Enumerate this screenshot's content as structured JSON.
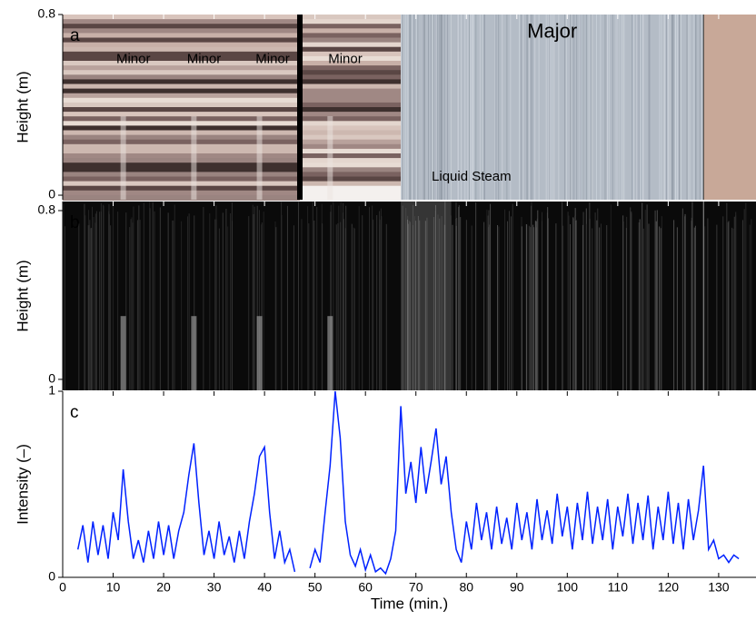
{
  "chart_data": [
    {
      "type": "image",
      "panel_label": "a",
      "ylabel": "Height (m)",
      "xlim": [
        0,
        137.4
      ],
      "ylim": [
        -0.02,
        0.8
      ],
      "yticks": [
        0,
        0.8
      ],
      "annotations": [
        {
          "text": "Minor",
          "color": "#ff88dd"
        },
        {
          "text": "Minor",
          "color": "#ff88dd"
        },
        {
          "text": "Minor",
          "color": "#ff88dd"
        },
        {
          "text": "Minor",
          "color": "#ff88dd"
        },
        {
          "text": "Major",
          "color": "#e00000"
        },
        {
          "text": "Liquid Steam",
          "color": "#000000"
        }
      ]
    },
    {
      "type": "image",
      "panel_label": "b",
      "ylabel": "Height (m)",
      "xlim": [
        0,
        137.4
      ],
      "ylim": [
        -0.052,
        0.843
      ],
      "yticks": [
        0,
        0.8
      ]
    },
    {
      "type": "line",
      "panel_label": "c",
      "ylabel": "Intensity (–)",
      "xlabel": "Time (min.)",
      "color": "#0022ff",
      "xlim": [
        0,
        137.4
      ],
      "ylim": [
        0,
        1
      ],
      "yticks": [
        0,
        1
      ],
      "xticks": [
        0,
        10,
        20,
        30,
        40,
        50,
        60,
        70,
        80,
        90,
        100,
        110,
        120,
        130
      ],
      "x": [
        3,
        4,
        5,
        6,
        7,
        8,
        9,
        10,
        11,
        12,
        13,
        14,
        15,
        16,
        17,
        18,
        19,
        20,
        21,
        22,
        23,
        24,
        25,
        26,
        27,
        28,
        29,
        30,
        31,
        32,
        33,
        34,
        35,
        36,
        37,
        38,
        39,
        40,
        41,
        42,
        43,
        44,
        45,
        46,
        47,
        48,
        49,
        50,
        51,
        52,
        53,
        54,
        55,
        56,
        57,
        58,
        59,
        60,
        61,
        62,
        63,
        64,
        65,
        66,
        67,
        68,
        69,
        70,
        71,
        72,
        73,
        74,
        75,
        76,
        77,
        78,
        79,
        80,
        81,
        82,
        83,
        84,
        85,
        86,
        87,
        88,
        89,
        90,
        91,
        92,
        93,
        94,
        95,
        96,
        97,
        98,
        99,
        100,
        101,
        102,
        103,
        104,
        105,
        106,
        107,
        108,
        109,
        110,
        111,
        112,
        113,
        114,
        115,
        116,
        117,
        118,
        119,
        120,
        121,
        122,
        123,
        124,
        125,
        126,
        127,
        128,
        129,
        130,
        131,
        132,
        133,
        134
      ],
      "values": [
        0.15,
        0.28,
        0.08,
        0.3,
        0.12,
        0.28,
        0.1,
        0.35,
        0.2,
        0.58,
        0.3,
        0.1,
        0.2,
        0.08,
        0.25,
        0.1,
        0.3,
        0.12,
        0.28,
        0.1,
        0.25,
        0.35,
        0.55,
        0.72,
        0.4,
        0.12,
        0.25,
        0.1,
        0.3,
        0.12,
        0.22,
        0.08,
        0.25,
        0.1,
        0.3,
        0.45,
        0.65,
        0.7,
        0.35,
        0.1,
        0.25,
        0.08,
        0.15,
        0.03,
        null,
        null,
        0.05,
        0.15,
        0.08,
        0.35,
        0.6,
        1.0,
        0.75,
        0.3,
        0.12,
        0.06,
        0.15,
        0.04,
        0.12,
        0.03,
        0.05,
        0.02,
        0.1,
        0.25,
        0.92,
        0.45,
        0.62,
        0.4,
        0.7,
        0.45,
        0.62,
        0.8,
        0.5,
        0.65,
        0.35,
        0.15,
        0.08,
        0.3,
        0.15,
        0.4,
        0.2,
        0.35,
        0.15,
        0.38,
        0.18,
        0.32,
        0.15,
        0.4,
        0.2,
        0.35,
        0.15,
        0.42,
        0.2,
        0.36,
        0.18,
        0.45,
        0.22,
        0.38,
        0.15,
        0.4,
        0.2,
        0.46,
        0.18,
        0.38,
        0.2,
        0.42,
        0.15,
        0.38,
        0.22,
        0.45,
        0.18,
        0.4,
        0.2,
        0.44,
        0.15,
        0.38,
        0.2,
        0.46,
        0.18,
        0.4,
        0.15,
        0.42,
        0.2,
        0.36,
        0.6,
        0.15,
        0.2,
        0.1,
        0.12,
        0.08,
        0.12,
        0.1
      ]
    }
  ]
}
